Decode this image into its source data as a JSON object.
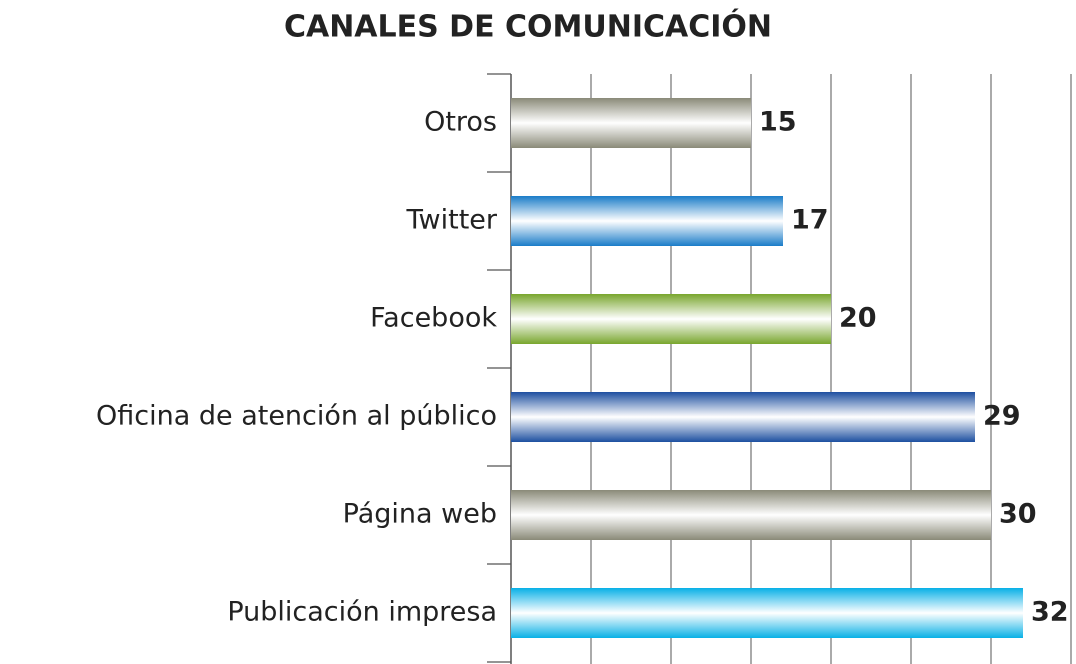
{
  "chart_data": {
    "type": "bar",
    "orientation": "horizontal",
    "title": "CANALES DE COMUNICACIÓN",
    "categories": [
      "Otros",
      "Twitter",
      "Facebook",
      "Oficina de atención al público",
      "Página web",
      "Publicación impresa"
    ],
    "values": [
      15,
      17,
      20,
      29,
      30,
      32
    ],
    "colors": [
      "#8a8a78",
      "#1a7cc8",
      "#79a62e",
      "#1d4fa0",
      "#8a8a78",
      "#08b0e6"
    ],
    "xlim": [
      0,
      35
    ],
    "xticks": [
      0,
      5,
      10,
      15,
      20,
      25,
      30,
      35
    ],
    "grid": true
  }
}
